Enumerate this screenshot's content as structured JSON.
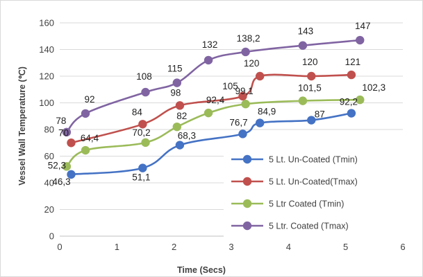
{
  "chart_data": {
    "type": "line",
    "title": "",
    "xlabel": "Time (Secs)",
    "ylabel": "Vessel Wall Temperature (℃)",
    "xlim": [
      0,
      6
    ],
    "ylim": [
      0,
      160
    ],
    "x_ticks": [
      "0",
      "1",
      "2",
      "3",
      "4",
      "5",
      "6"
    ],
    "y_ticks": [
      "0",
      "20",
      "40",
      "60",
      "80",
      "100",
      "120",
      "140",
      "160"
    ],
    "grid": "horizontal",
    "legend_position": "right",
    "series": [
      {
        "name": "5 Lt. Un-Coated (Tmin)",
        "color": "#4472C4",
        "x": [
          0.2,
          1.45,
          2.1,
          3.2,
          3.5,
          4.4,
          5.1
        ],
        "y": [
          46.3,
          51.1,
          68.3,
          76.7,
          84.9,
          87,
          92.2
        ],
        "labels": [
          "46,3",
          "51,1",
          "68,3",
          "76,7",
          "84,9",
          "87",
          "92,2"
        ]
      },
      {
        "name": "5 Lt. Un-Coated(Tmax)",
        "color": "#C0504D",
        "x": [
          0.2,
          1.45,
          2.1,
          3.2,
          3.5,
          4.4,
          5.1
        ],
        "y": [
          70,
          84,
          98,
          105,
          120,
          120,
          121
        ],
        "labels": [
          "70",
          "84",
          "98",
          "105",
          "120",
          "120",
          "121"
        ]
      },
      {
        "name": "5 Ltr Coated (Tmin)",
        "color": "#9BBB59",
        "x": [
          0.12,
          0.45,
          1.5,
          2.05,
          2.6,
          3.25,
          4.25,
          5.25
        ],
        "y": [
          52.3,
          64.4,
          70.2,
          82,
          92.4,
          99.1,
          101.5,
          102.3
        ],
        "labels": [
          "52,3",
          "64,4",
          "70,2",
          "82",
          "92,4",
          "99,1",
          "101,5",
          "102,3"
        ]
      },
      {
        "name": "5 Ltr. Coated (Tmax)",
        "color": "#8064A2",
        "x": [
          0.12,
          0.45,
          1.5,
          2.05,
          2.6,
          3.25,
          4.25,
          5.25
        ],
        "y": [
          78,
          92,
          108,
          115,
          132,
          138.2,
          143,
          147
        ],
        "labels": [
          "78",
          "92",
          "108",
          "115",
          "132",
          "138,2",
          "143",
          "147"
        ]
      }
    ]
  }
}
